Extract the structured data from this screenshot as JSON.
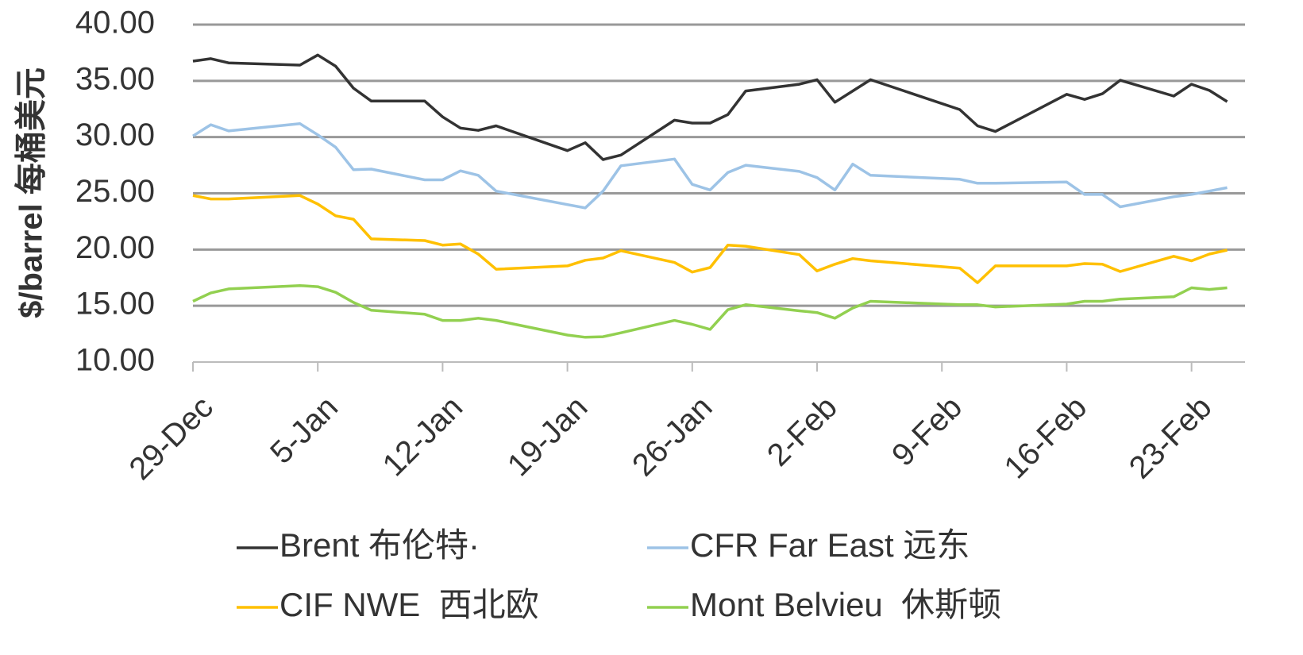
{
  "chart_data": {
    "type": "line",
    "y_label": "$/barrel  每桶美元",
    "x": [
      "29-Dec",
      "30-Dec",
      "31-Dec",
      "4-Jan",
      "5-Jan",
      "6-Jan",
      "7-Jan",
      "8-Jan",
      "11-Jan",
      "12-Jan",
      "13-Jan",
      "14-Jan",
      "15-Jan",
      "19-Jan",
      "20-Jan",
      "21-Jan",
      "22-Jan",
      "25-Jan",
      "26-Jan",
      "27-Jan",
      "28-Jan",
      "29-Jan",
      "1-Feb",
      "2-Feb",
      "3-Feb",
      "4-Feb",
      "5-Feb",
      "10-Feb",
      "11-Feb",
      "12-Feb",
      "16-Feb",
      "17-Feb",
      "18-Feb",
      "19-Feb",
      "22-Feb",
      "23-Feb",
      "24-Feb",
      "25-Feb"
    ],
    "series": [
      {
        "name": "Brent 布伦特·",
        "color": "#333333",
        "values": [
          36.75,
          36.97,
          36.6,
          36.4,
          37.3,
          36.3,
          34.35,
          33.2,
          33.2,
          31.8,
          30.8,
          30.6,
          31.0,
          28.8,
          29.5,
          28.0,
          28.4,
          31.5,
          31.25,
          31.25,
          32.0,
          34.1,
          34.7,
          35.1,
          33.1,
          34.1,
          35.1,
          32.45,
          31.0,
          30.5,
          33.8,
          33.35,
          33.85,
          35.05,
          33.65,
          34.7,
          34.15,
          33.15
        ]
      },
      {
        "name": "CFR Far East 远东",
        "color": "#9dc3e6",
        "values": [
          30.1,
          31.1,
          30.55,
          31.2,
          30.2,
          29.1,
          27.1,
          27.15,
          26.2,
          26.2,
          27.0,
          26.6,
          25.2,
          24.0,
          23.7,
          25.2,
          27.45,
          28.05,
          25.8,
          25.3,
          26.85,
          27.5,
          26.95,
          26.4,
          25.3,
          27.6,
          26.6,
          26.25,
          25.9,
          25.9,
          26.0,
          24.9,
          24.9,
          23.8,
          24.7,
          24.9,
          25.2,
          25.5
        ]
      },
      {
        "name": "CIF NWE  西北欧",
        "color": "#ffc000",
        "values": [
          24.8,
          24.5,
          24.5,
          24.8,
          24.05,
          23.0,
          22.7,
          20.95,
          20.8,
          20.4,
          20.5,
          19.6,
          18.25,
          18.55,
          19.05,
          19.25,
          19.9,
          18.85,
          18.0,
          18.4,
          20.4,
          20.3,
          19.55,
          18.1,
          18.7,
          19.2,
          19.0,
          18.35,
          17.05,
          18.55,
          18.55,
          18.75,
          18.7,
          18.05,
          19.4,
          19.0,
          19.6,
          19.95
        ]
      },
      {
        "name": "Mont Belvieu  休斯顿",
        "color": "#92d050",
        "values": [
          15.4,
          16.15,
          16.5,
          16.8,
          16.7,
          16.2,
          15.3,
          14.6,
          14.25,
          13.7,
          13.7,
          13.9,
          13.7,
          12.4,
          12.2,
          12.25,
          12.6,
          13.7,
          13.35,
          12.9,
          14.65,
          15.1,
          14.55,
          14.4,
          13.9,
          14.8,
          15.4,
          15.1,
          15.1,
          14.9,
          15.15,
          15.4,
          15.4,
          15.6,
          15.8,
          16.6,
          16.45,
          16.6
        ]
      }
    ],
    "xlim": [
      "29-Dec",
      "26-Feb"
    ],
    "xticks": [
      "29-Dec",
      "5-Jan",
      "12-Jan",
      "19-Jan",
      "26-Jan",
      "2-Feb",
      "9-Feb",
      "16-Feb",
      "23-Feb"
    ],
    "ylim": [
      10,
      40
    ],
    "yticks": [
      {
        "value": 10,
        "label": "10.00"
      },
      {
        "value": 15,
        "label": "15.00"
      },
      {
        "value": 20,
        "label": "20.00"
      },
      {
        "value": 25,
        "label": "25.00"
      },
      {
        "value": 30,
        "label": "30.00"
      },
      {
        "value": 35,
        "label": "35.00"
      },
      {
        "value": 40,
        "label": "40.00"
      }
    ],
    "grid": true,
    "legend": "bottom"
  }
}
